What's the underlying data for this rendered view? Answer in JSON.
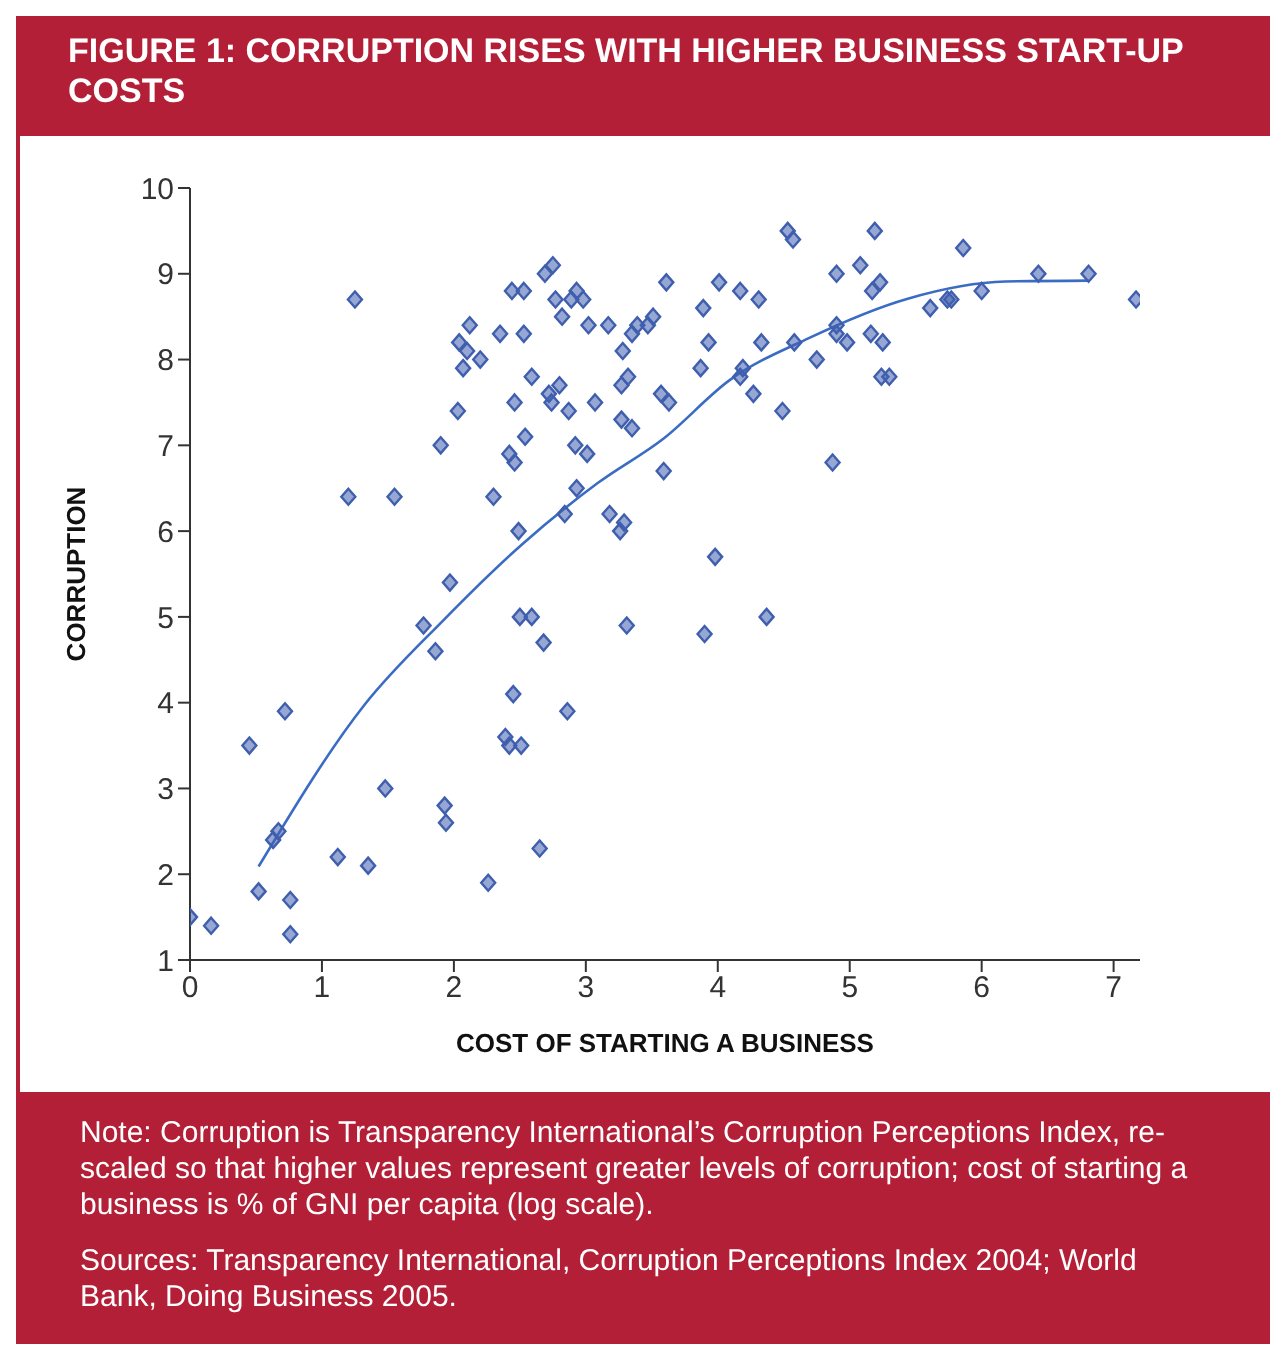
{
  "chart_data": {
    "type": "scatter",
    "title": "FIGURE 1: CORRUPTION RISES WITH HIGHER BUSINESS START-UP COSTS",
    "xlabel": "COST OF STARTING A BUSINESS",
    "ylabel": "CORRUPTION",
    "annotations": [
      "Note: Corruption is Transparency International’s Corruption Perceptions Index, re-scaled so that higher values represent greater levels of corruption; cost of starting a business is % of GNI per capita (log scale).",
      "Sources: Transparency International, Corruption Perceptions Index 2004; World Bank, Doing Business 2005."
    ],
    "xlim": [
      0,
      7.2
    ],
    "xticks": [
      0,
      1,
      2,
      3,
      4,
      5,
      6,
      7
    ],
    "ylim": [
      1,
      10
    ],
    "yticks": [
      1,
      2,
      3,
      4,
      5,
      6,
      7,
      8,
      9,
      10
    ],
    "grid": false,
    "series": [
      {
        "type": "scatter",
        "marker": "diamond",
        "color": "#3f5fae",
        "x": [
          0,
          0.16,
          0.52,
          0.45,
          0.63,
          0.67,
          0.72,
          0.76,
          0.76,
          1.12,
          1.35,
          1.48,
          1.25,
          1.2,
          1.55,
          1.77,
          1.86,
          1.97,
          1.93,
          1.94,
          2.26,
          2.39,
          2.42,
          2.51,
          2.45,
          2.5,
          2.59,
          2.68,
          2.65,
          2.86,
          2.49,
          2.3,
          1.9,
          2.03,
          2.07,
          2.04,
          2.1,
          2.12,
          2.2,
          2.35,
          2.44,
          2.53,
          2.53,
          2.59,
          2.46,
          2.54,
          2.42,
          2.46,
          2.72,
          2.74,
          2.69,
          2.75,
          2.77,
          2.82,
          2.89,
          2.93,
          2.98,
          3.02,
          3.17,
          3.28,
          3.35,
          3.39,
          3.47,
          3.51,
          3.61,
          3.89,
          4.01,
          4.17,
          4.31,
          4.53,
          4.57,
          4.9,
          4.9,
          2.8,
          2.87,
          3.07,
          3.27,
          3.32,
          3.27,
          3.35,
          3.57,
          3.63,
          3.87,
          3.93,
          4.19,
          4.17,
          4.27,
          4.33,
          4.58,
          4.49,
          4.75,
          2.92,
          3.01,
          2.93,
          2.84,
          3.18,
          3.29,
          3.26,
          3.59,
          3.98,
          4.87,
          3.31,
          3.9,
          4.37,
          5.19,
          5.86,
          5.08,
          5.23,
          5.17,
          4.9,
          4.98,
          5.16,
          5.25,
          5.24,
          5.3,
          5.61,
          5.74,
          5.77,
          6.0,
          6.43,
          6.81,
          7.17
        ],
        "values": [
          1.5,
          1.4,
          1.8,
          3.5,
          2.4,
          2.5,
          3.9,
          1.7,
          1.3,
          2.2,
          2.1,
          3.0,
          8.7,
          6.4,
          6.4,
          4.9,
          4.6,
          5.4,
          2.8,
          2.6,
          1.9,
          3.6,
          3.5,
          3.5,
          4.1,
          5.0,
          5.0,
          4.7,
          2.3,
          3.9,
          6.0,
          6.4,
          7.0,
          7.4,
          7.9,
          8.2,
          8.1,
          8.4,
          8.0,
          8.3,
          8.8,
          8.8,
          8.3,
          7.8,
          7.5,
          7.1,
          6.9,
          6.8,
          7.6,
          7.5,
          9.0,
          9.1,
          8.7,
          8.5,
          8.7,
          8.8,
          8.7,
          8.4,
          8.4,
          8.1,
          8.3,
          8.4,
          8.4,
          8.5,
          8.9,
          8.6,
          8.9,
          8.8,
          8.7,
          9.5,
          9.4,
          9.0,
          8.4,
          7.7,
          7.4,
          7.5,
          7.7,
          7.8,
          7.3,
          7.2,
          7.6,
          7.5,
          7.9,
          8.2,
          7.9,
          7.8,
          7.6,
          8.2,
          8.2,
          7.4,
          8.0,
          7.0,
          6.9,
          6.5,
          6.2,
          6.2,
          6.1,
          6.0,
          6.7,
          5.7,
          6.8,
          4.9,
          4.8,
          5.0,
          9.5,
          9.3,
          9.1,
          8.9,
          8.8,
          8.3,
          8.2,
          8.3,
          8.2,
          7.8,
          7.8,
          8.6,
          8.7,
          8.7,
          8.8,
          9.0,
          9.0,
          8.7
        ]
      },
      {
        "type": "line",
        "marker": "none",
        "line_style": "solid",
        "color": "#3b6cc4",
        "x": [
          0.52,
          1.32,
          1.92,
          2.52,
          3.09,
          3.59,
          4.09,
          4.69,
          5.44,
          6.18,
          6.81
        ],
        "values": [
          2.09,
          3.97,
          4.96,
          5.85,
          6.56,
          7.08,
          7.76,
          8.25,
          8.71,
          8.91,
          8.92
        ]
      }
    ]
  }
}
